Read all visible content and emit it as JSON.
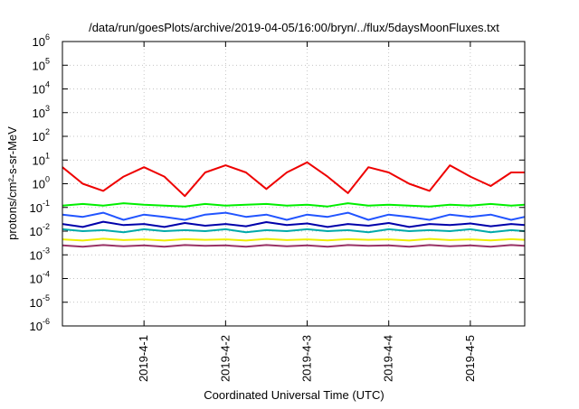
{
  "chart_data": {
    "type": "line",
    "title": "/data/run/goesPlots/archive/2019-04-05/16:00/bryn/../flux/5daysMoonFluxes.txt",
    "xlabel": "Coordinated Universal Time (UTC)",
    "ylabel": "protons/cm²-s-sr-MeV",
    "y_scale": "log",
    "ylim": [
      1e-06,
      1000000.0
    ],
    "xlim": [
      "2019-03-31T00:00",
      "2019-04-05T16:00"
    ],
    "x_ticks": [
      "2019-4-1",
      "2019-4-2",
      "2019-4-3",
      "2019-4-4",
      "2019-4-5"
    ],
    "y_ticks": [
      {
        "base": "10",
        "exp": "-6"
      },
      {
        "base": "10",
        "exp": "-5"
      },
      {
        "base": "10",
        "exp": "-4"
      },
      {
        "base": "10",
        "exp": "-3"
      },
      {
        "base": "10",
        "exp": "-2"
      },
      {
        "base": "10",
        "exp": "-1"
      },
      {
        "base": "10",
        "exp": "0"
      },
      {
        "base": "10",
        "exp": "1"
      },
      {
        "base": "10",
        "exp": "2"
      },
      {
        "base": "10",
        "exp": "3"
      },
      {
        "base": "10",
        "exp": "4"
      },
      {
        "base": "10",
        "exp": "5"
      },
      {
        "base": "10",
        "exp": "6"
      }
    ],
    "grid": true,
    "legend": "none",
    "x": [
      "2019-03-31T00:00",
      "2019-03-31T06:00",
      "2019-03-31T12:00",
      "2019-03-31T18:00",
      "2019-04-01T00:00",
      "2019-04-01T06:00",
      "2019-04-01T12:00",
      "2019-04-01T18:00",
      "2019-04-02T00:00",
      "2019-04-02T06:00",
      "2019-04-02T12:00",
      "2019-04-02T18:00",
      "2019-04-03T00:00",
      "2019-04-03T06:00",
      "2019-04-03T12:00",
      "2019-04-03T18:00",
      "2019-04-04T00:00",
      "2019-04-04T06:00",
      "2019-04-04T12:00",
      "2019-04-04T18:00",
      "2019-04-05T00:00",
      "2019-04-05T06:00",
      "2019-04-05T12:00",
      "2019-04-05T16:00"
    ],
    "series": [
      {
        "color": "#ee0000",
        "values": [
          5,
          1,
          0.5,
          2,
          5,
          2,
          0.3,
          3,
          6,
          3,
          0.6,
          3,
          8,
          2,
          0.4,
          5,
          3,
          1,
          0.5,
          6,
          2,
          0.8,
          3,
          3
        ]
      },
      {
        "color": "#00ee00",
        "values": [
          0.12,
          0.14,
          0.12,
          0.15,
          0.13,
          0.12,
          0.11,
          0.14,
          0.12,
          0.13,
          0.14,
          0.12,
          0.13,
          0.11,
          0.15,
          0.12,
          0.13,
          0.12,
          0.11,
          0.13,
          0.12,
          0.14,
          0.12,
          0.13
        ]
      },
      {
        "color": "#2255ff",
        "values": [
          0.05,
          0.04,
          0.06,
          0.03,
          0.05,
          0.04,
          0.03,
          0.05,
          0.06,
          0.04,
          0.05,
          0.03,
          0.05,
          0.04,
          0.06,
          0.03,
          0.05,
          0.04,
          0.03,
          0.05,
          0.04,
          0.05,
          0.03,
          0.04
        ]
      },
      {
        "color": "#0000aa",
        "values": [
          0.02,
          0.015,
          0.025,
          0.018,
          0.02,
          0.015,
          0.022,
          0.017,
          0.02,
          0.016,
          0.024,
          0.018,
          0.021,
          0.015,
          0.02,
          0.017,
          0.022,
          0.015,
          0.02,
          0.018,
          0.021,
          0.016,
          0.02,
          0.018
        ]
      },
      {
        "color": "#00aaaa",
        "values": [
          0.012,
          0.01,
          0.011,
          0.009,
          0.012,
          0.01,
          0.011,
          0.01,
          0.012,
          0.009,
          0.011,
          0.01,
          0.012,
          0.01,
          0.011,
          0.009,
          0.012,
          0.01,
          0.011,
          0.01,
          0.012,
          0.009,
          0.011,
          0.01
        ]
      },
      {
        "color": "#eeee00",
        "values": [
          0.0045,
          0.004,
          0.0048,
          0.0042,
          0.0045,
          0.004,
          0.0046,
          0.0043,
          0.0045,
          0.004,
          0.0047,
          0.0042,
          0.0045,
          0.0041,
          0.0046,
          0.0043,
          0.0045,
          0.004,
          0.0047,
          0.0042,
          0.0045,
          0.0041,
          0.0046,
          0.0043
        ]
      },
      {
        "color": "#993366",
        "values": [
          0.0025,
          0.0022,
          0.0026,
          0.0023,
          0.0025,
          0.0022,
          0.0026,
          0.0024,
          0.0025,
          0.0022,
          0.0026,
          0.0023,
          0.0025,
          0.0022,
          0.0026,
          0.0024,
          0.0025,
          0.0022,
          0.0026,
          0.0023,
          0.0025,
          0.0022,
          0.0026,
          0.0024
        ]
      }
    ]
  }
}
